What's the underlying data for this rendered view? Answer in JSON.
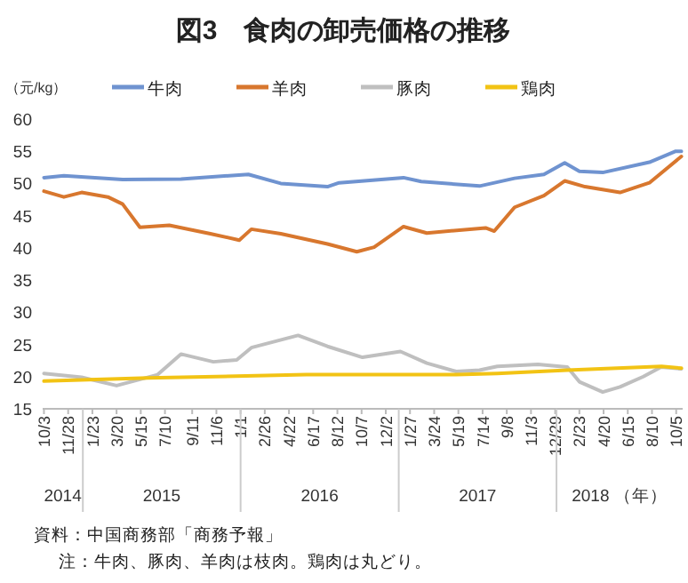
{
  "chart_data": {
    "type": "line",
    "title": "図3　食肉の卸売価格の推移",
    "ylabel": "（元/kg）",
    "legend": "top",
    "grid": false,
    "xlim": [
      "2014-09-30",
      "2018-10-20"
    ],
    "ylim": [
      15,
      60
    ],
    "yticks": [
      15,
      20,
      25,
      30,
      35,
      40,
      45,
      50,
      55,
      60
    ],
    "xticks": [
      {
        "value": "2014-10-03",
        "label": "10/3"
      },
      {
        "value": "2014-11-28",
        "label": "11/28"
      },
      {
        "value": "2015-01-23",
        "label": "1/23"
      },
      {
        "value": "2015-03-20",
        "label": "3/20"
      },
      {
        "value": "2015-05-15",
        "label": "5/15"
      },
      {
        "value": "2015-07-10",
        "label": "7/10"
      },
      {
        "value": "2015-09-11",
        "label": "9/11"
      },
      {
        "value": "2015-11-06",
        "label": "11/6"
      },
      {
        "value": "2016-01-01",
        "label": "1/1"
      },
      {
        "value": "2016-02-26",
        "label": "2/26"
      },
      {
        "value": "2016-04-22",
        "label": "4/22"
      },
      {
        "value": "2016-06-17",
        "label": "6/17"
      },
      {
        "value": "2016-08-12",
        "label": "8/12"
      },
      {
        "value": "2016-10-07",
        "label": "10/7"
      },
      {
        "value": "2016-12-02",
        "label": "12/2"
      },
      {
        "value": "2017-01-27",
        "label": "1/27"
      },
      {
        "value": "2017-03-24",
        "label": "3/24"
      },
      {
        "value": "2017-05-19",
        "label": "5/19"
      },
      {
        "value": "2017-07-14",
        "label": "7/14"
      },
      {
        "value": "2017-09-08",
        "label": "9/8"
      },
      {
        "value": "2017-11-03",
        "label": "11/3"
      },
      {
        "value": "2017-12-29",
        "label": "12/29"
      },
      {
        "value": "2018-02-23",
        "label": "2/23"
      },
      {
        "value": "2018-04-20",
        "label": "4/20"
      },
      {
        "value": "2018-06-15",
        "label": "6/15"
      },
      {
        "value": "2018-08-10",
        "label": "8/10"
      },
      {
        "value": "2018-10-05",
        "label": "10/5"
      }
    ],
    "series": [
      {
        "name": "牛肉",
        "color": "#6f93d0",
        "x": [
          "2014-10-03",
          "2014-11-18",
          "2015-04-03",
          "2015-08-16",
          "2016-01-19",
          "2016-04-03",
          "2016-07-20",
          "2016-08-16",
          "2017-01-12",
          "2017-02-22",
          "2017-07-07",
          "2017-09-26",
          "2017-12-03",
          "2018-01-20",
          "2018-02-23",
          "2018-04-18",
          "2018-08-04",
          "2018-10-04",
          "2018-10-17"
        ],
        "values": [
          50.9,
          51.2,
          50.6,
          50.7,
          51.4,
          50.0,
          49.5,
          50.1,
          50.9,
          50.3,
          49.6,
          50.8,
          51.4,
          53.2,
          51.9,
          51.7,
          53.3,
          55.0,
          55.0
        ]
      },
      {
        "name": "羊肉",
        "color": "#d8772e",
        "x": [
          "2014-10-03",
          "2014-11-18",
          "2014-12-29",
          "2015-02-28",
          "2015-04-03",
          "2015-05-13",
          "2015-07-20",
          "2015-10-23",
          "2015-12-29",
          "2016-01-26",
          "2016-04-03",
          "2016-07-20",
          "2016-09-26",
          "2016-11-05",
          "2017-01-12",
          "2017-03-07",
          "2017-07-21",
          "2017-08-10",
          "2017-09-26",
          "2017-12-03",
          "2018-01-20",
          "2018-03-08",
          "2018-05-28",
          "2018-08-04",
          "2018-10-17"
        ],
        "values": [
          48.8,
          47.9,
          48.6,
          47.9,
          46.8,
          43.2,
          43.5,
          42.2,
          41.2,
          42.9,
          42.2,
          40.6,
          39.4,
          40.1,
          43.3,
          42.3,
          43.1,
          42.6,
          46.3,
          48.1,
          50.4,
          49.5,
          48.6,
          50.1,
          54.2
        ]
      },
      {
        "name": "豚肉",
        "color": "#bfbfbf",
        "x": [
          "2014-10-03",
          "2014-12-29",
          "2015-03-20",
          "2015-06-23",
          "2015-08-16",
          "2015-10-30",
          "2015-12-23",
          "2016-01-26",
          "2016-05-13",
          "2016-07-20",
          "2016-10-09",
          "2017-01-05",
          "2017-03-07",
          "2017-05-14",
          "2017-07-07",
          "2017-08-17",
          "2017-11-19",
          "2018-01-26",
          "2018-02-23",
          "2018-04-18",
          "2018-05-28",
          "2018-07-21",
          "2018-08-31",
          "2018-10-17"
        ],
        "values": [
          20.5,
          19.9,
          18.6,
          20.3,
          23.5,
          22.3,
          22.6,
          24.5,
          26.4,
          24.7,
          23.0,
          23.9,
          22.1,
          20.8,
          21.0,
          21.6,
          21.9,
          21.5,
          19.2,
          17.6,
          18.4,
          20.0,
          21.5,
          21.2
        ]
      },
      {
        "name": "鶏肉",
        "color": "#f2c314",
        "x": [
          "2014-10-03",
          "2015-06-01",
          "2016-06-01",
          "2017-05-14",
          "2017-08-17",
          "2018-01-26",
          "2018-09-01",
          "2018-10-17"
        ],
        "values": [
          19.3,
          19.8,
          20.3,
          20.3,
          20.5,
          21.0,
          21.6,
          21.3
        ]
      }
    ],
    "annotations": [
      "2014",
      "2015",
      "2016",
      "2017",
      "2018 （年）",
      "資料：中国商務部「商務予報」",
      "注：牛肉、豚肉、羊肉は枝肉。鶏肉は丸どり。"
    ]
  }
}
